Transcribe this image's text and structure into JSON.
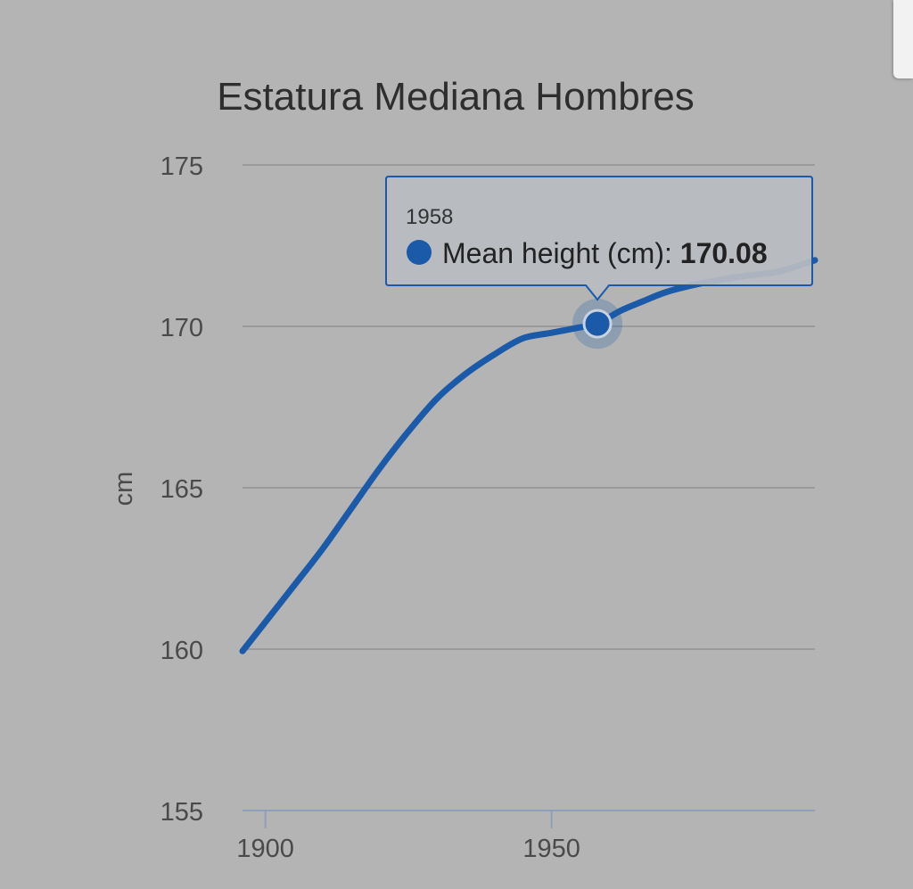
{
  "chart_data": {
    "type": "line",
    "title": "Estatura Mediana Hombres",
    "ylabel": "cm",
    "xlabel": "",
    "xlim": [
      1896,
      1996
    ],
    "ylim": [
      155,
      175
    ],
    "x_ticks": [
      1900,
      1950
    ],
    "y_ticks": [
      155,
      160,
      165,
      170,
      175
    ],
    "grid": true,
    "series": [
      {
        "name": "Mean height (cm)",
        "color": "#1a5aa8",
        "x": [
          1896,
          1900,
          1905,
          1910,
          1915,
          1920,
          1925,
          1930,
          1935,
          1940,
          1945,
          1950,
          1955,
          1958,
          1962,
          1966,
          1970,
          1975,
          1980,
          1985,
          1990,
          1996
        ],
        "y": [
          159.94,
          160.84,
          161.97,
          163.11,
          164.36,
          165.61,
          166.75,
          167.77,
          168.53,
          169.13,
          169.63,
          169.8,
          169.97,
          170.08,
          170.48,
          170.78,
          171.06,
          171.29,
          171.46,
          171.59,
          171.71,
          172.05
        ]
      }
    ],
    "tooltip": {
      "x_label": "1958",
      "series_label": "Mean height (cm): ",
      "value_label": "170.08",
      "x": 1958,
      "y": 170.08
    }
  },
  "colors": {
    "background": "#b4b4b4",
    "gridline": "#9a9a9a",
    "axis": "#8f9fb8",
    "series": "#1a5aa8",
    "tooltip_border": "#1a5aa8"
  }
}
